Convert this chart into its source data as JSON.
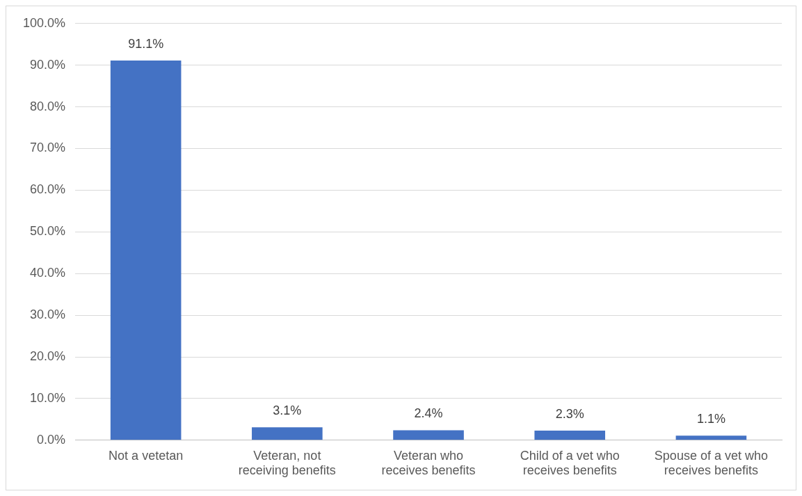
{
  "chart_data": {
    "type": "bar",
    "categories": [
      "Not a vetetan",
      "Veteran, not receiving benefits",
      "Veteran who receives benefits",
      "Child of a vet who receives benefits",
      "Spouse of a vet who receives benefits"
    ],
    "values": [
      91.1,
      3.1,
      2.4,
      2.3,
      1.1
    ],
    "value_labels": [
      "91.1%",
      "3.1%",
      "2.4%",
      "2.3%",
      "1.1%"
    ],
    "color": "#4472c4",
    "ylim": [
      0,
      100
    ],
    "yticks": [
      {
        "value": 0,
        "label": "0.0%"
      },
      {
        "value": 10,
        "label": "10.0%"
      },
      {
        "value": 20,
        "label": "20.0%"
      },
      {
        "value": 30,
        "label": "30.0%"
      },
      {
        "value": 40,
        "label": "40.0%"
      },
      {
        "value": 50,
        "label": "50.0%"
      },
      {
        "value": 60,
        "label": "60.0%"
      },
      {
        "value": 70,
        "label": "70.0%"
      },
      {
        "value": 80,
        "label": "80.0%"
      },
      {
        "value": 90,
        "label": "90.0%"
      },
      {
        "value": 100,
        "label": "100.0%"
      }
    ],
    "grid": "y",
    "legend": false
  }
}
